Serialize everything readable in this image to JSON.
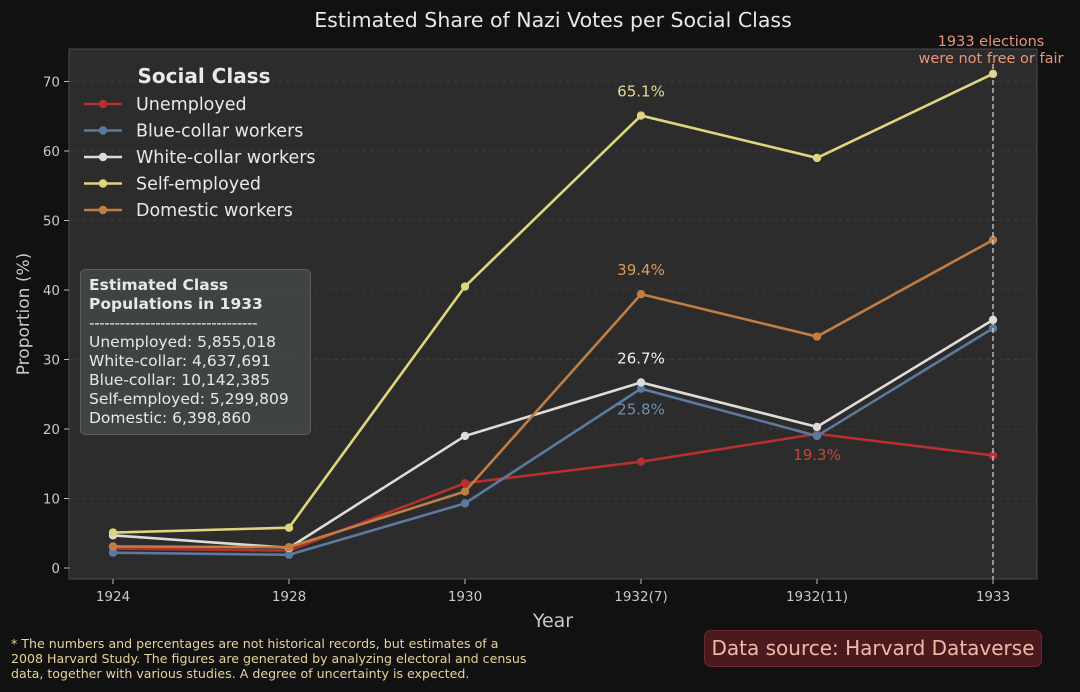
{
  "chart_data": {
    "type": "line",
    "title": "Estimated Share of Nazi Votes per Social Class",
    "xlabel": "Year",
    "ylabel": "Proportion (%)",
    "categories": [
      "1924",
      "1928",
      "1930",
      "1932(7)",
      "1932(11)",
      "1933"
    ],
    "ylim": [
      -1.5,
      75
    ],
    "yticks": [
      0,
      10,
      20,
      30,
      40,
      50,
      60,
      70
    ],
    "grid": "horizontal dashed",
    "legend": {
      "title": "Social Class",
      "placement": "top-left"
    },
    "series": [
      {
        "name": "Unemployed",
        "color": "#b5302f",
        "values": [
          2.8,
          2.5,
          12.2,
          15.3,
          19.3,
          16.2
        ]
      },
      {
        "name": "Blue-collar workers",
        "color": "#5b7a9e",
        "values": [
          2.2,
          1.9,
          9.3,
          25.8,
          19.0,
          34.5
        ]
      },
      {
        "name": "White-collar workers",
        "color": "#dedcd8",
        "values": [
          4.7,
          2.9,
          19.0,
          26.7,
          20.3,
          35.7
        ]
      },
      {
        "name": "Self-employed",
        "color": "#dfd57f",
        "values": [
          5.1,
          5.8,
          40.5,
          65.1,
          59.0,
          71.1
        ]
      },
      {
        "name": "Domestic workers",
        "color": "#c07e44",
        "values": [
          3.1,
          3.0,
          11.0,
          39.4,
          33.3,
          47.2
        ]
      }
    ],
    "data_labels": [
      {
        "text": "65.1%",
        "series": 3,
        "index": 3,
        "color": "#e6d890"
      },
      {
        "text": "39.4%",
        "series": 4,
        "index": 3,
        "color": "#d79a5c"
      },
      {
        "text": "26.7%",
        "series": 2,
        "index": 3,
        "color": "#f0f0f0"
      },
      {
        "text": "25.8%",
        "series": 1,
        "index": 3,
        "color": "#6f8db2"
      },
      {
        "text": "19.3%",
        "series": 0,
        "index": 4,
        "color": "#c4453f"
      }
    ],
    "annotation": {
      "text": "1933 elections\nwere not free or fair",
      "category": "1933",
      "color": "#e8967a"
    }
  },
  "stats_box": {
    "title": "Estimated Class\nPopulations in 1933",
    "separator": "---------------------------------",
    "lines": [
      "Unemployed: 5,855,018",
      "White-collar: 4,637,691",
      "Blue-collar: 10,142,385",
      "Self-employed: 5,299,809",
      "Domestic: 6,398,860"
    ]
  },
  "footnote": "* The numbers and percentages are not historical records, but estimates of a\n2008 Harvard Study. The figures are generated by analyzing electoral and census\ndata, together with various studies. A degree of uncertainty is expected.",
  "source_label": "Data source: Harvard Dataverse",
  "colors": {
    "background": "#111111",
    "plot_background": "#2c2c2c",
    "text": "#e8e8e8",
    "footnote": "#e6d39a",
    "source_background": "#4a1a1e"
  }
}
